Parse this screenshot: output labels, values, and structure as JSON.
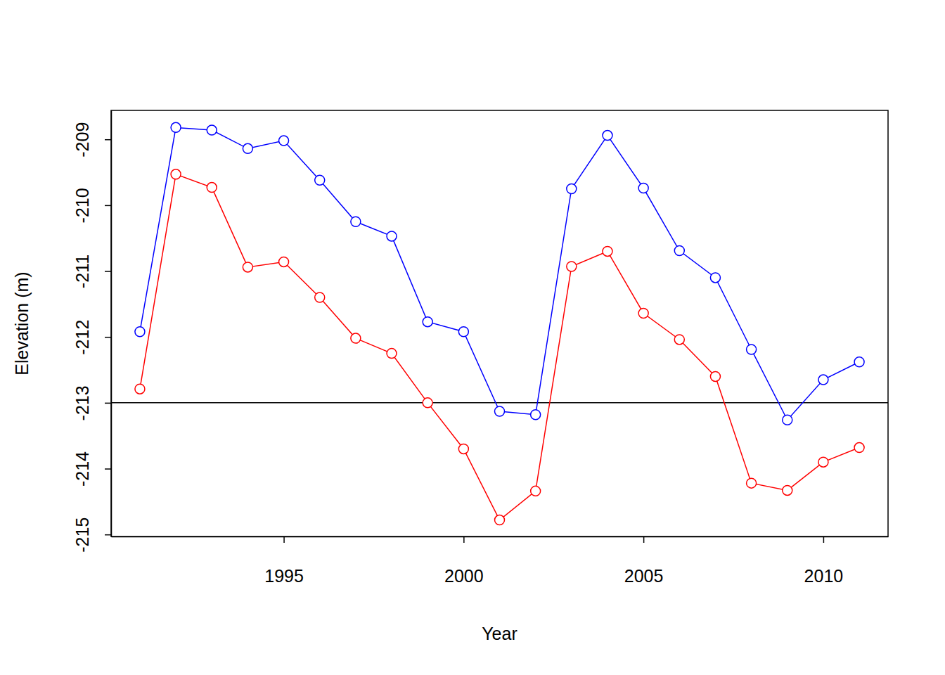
{
  "chart_data": {
    "type": "line",
    "x_label": "Year",
    "y_label": "Elevation (m)",
    "x": [
      1991,
      1992,
      1993,
      1994,
      1995,
      1996,
      1997,
      1998,
      1999,
      2000,
      2001,
      2002,
      2003,
      2004,
      2005,
      2006,
      2007,
      2008,
      2009,
      2010,
      2011
    ],
    "series": [
      {
        "color": "#0000ff",
        "marker": "circle",
        "values": [
          -211.92,
          -208.82,
          -208.86,
          -209.14,
          -209.02,
          -209.62,
          -210.25,
          -210.47,
          -211.77,
          -211.92,
          -213.13,
          -213.18,
          -209.75,
          -208.94,
          -209.74,
          -210.69,
          -211.1,
          -212.19,
          -213.26,
          -212.65,
          -212.38
        ]
      },
      {
        "color": "#ff0000",
        "marker": "circle",
        "values": [
          -212.79,
          -209.53,
          -209.73,
          -210.94,
          -210.86,
          -211.4,
          -212.02,
          -212.25,
          -213.0,
          -213.7,
          -214.78,
          -214.34,
          -210.93,
          -210.7,
          -211.64,
          -212.04,
          -212.6,
          -214.22,
          -214.33,
          -213.9,
          -213.68
        ]
      }
    ],
    "hline": -213,
    "xlim": [
      1990.2,
      2011.8
    ],
    "xticks": [
      1995,
      2000,
      2005,
      2010
    ],
    "ylim": [
      -215.03,
      -208.56
    ],
    "yticks": [
      -215,
      -214,
      -213,
      -212,
      -211,
      -210,
      -209
    ],
    "grid": false
  }
}
